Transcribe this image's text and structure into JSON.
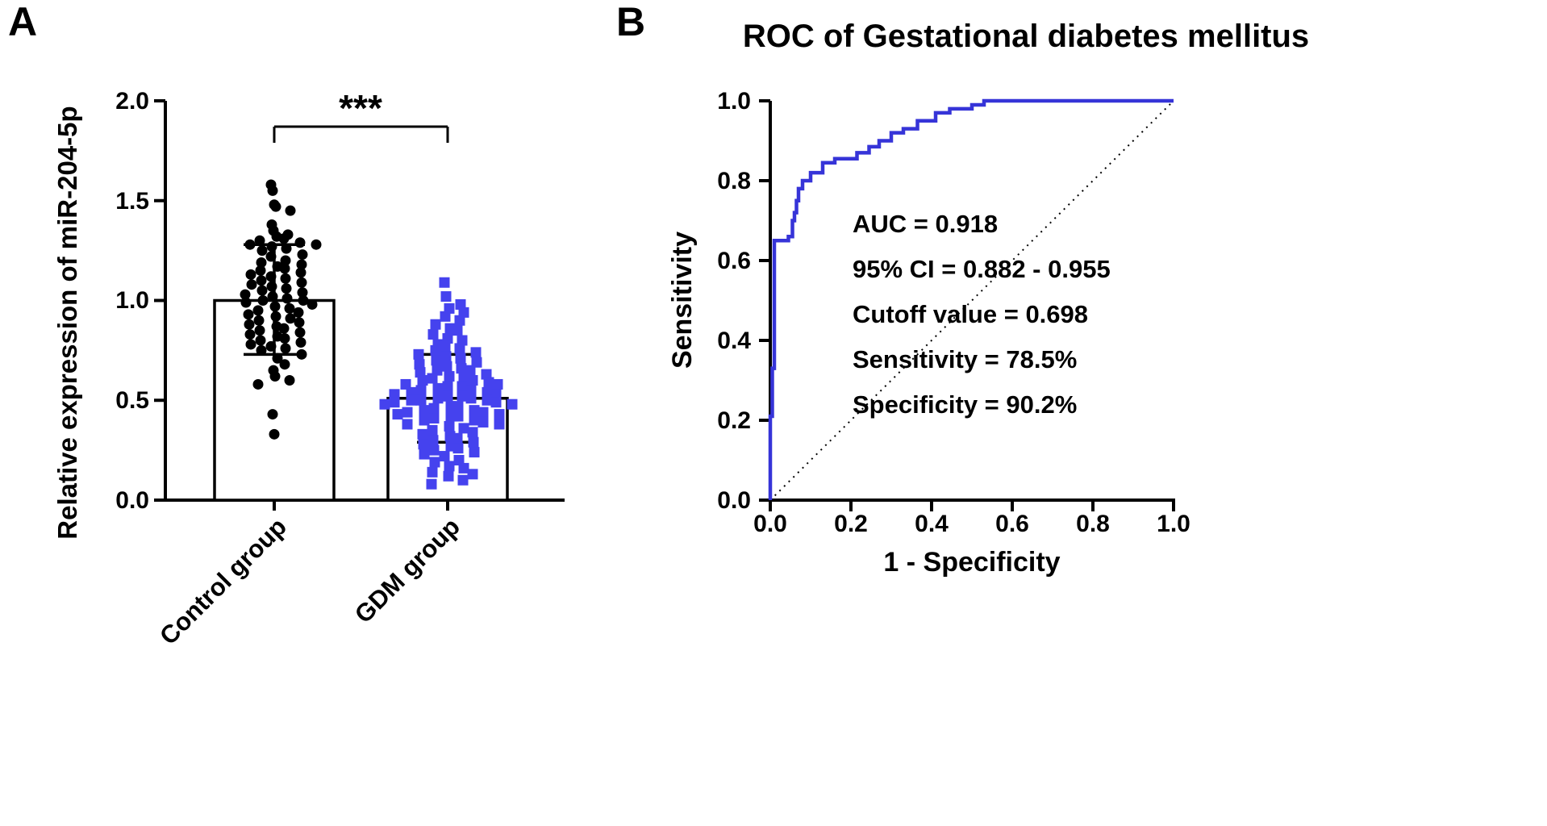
{
  "panels": {
    "a": {
      "label": "A"
    },
    "b": {
      "label": "B"
    }
  },
  "chart_data": [
    {
      "type": "scatter-bar",
      "panel": "A",
      "ylabel": "Relative expression of miR-204-5p",
      "ylim": [
        0,
        2.0
      ],
      "yticks": [
        "0.0",
        "0.5",
        "1.0",
        "1.5",
        "2.0"
      ],
      "significance": "***",
      "groups": [
        {
          "label": "Control group",
          "marker": "circle",
          "color": "#000000",
          "mean": 1.0,
          "error_low": 0.73,
          "error_high": 1.28,
          "values": [
            1.58,
            1.55,
            1.48,
            1.47,
            1.45,
            1.38,
            1.35,
            1.33,
            1.32,
            1.31,
            1.3,
            1.29,
            1.28,
            1.28,
            1.27,
            1.26,
            1.25,
            1.23,
            1.22,
            1.2,
            1.19,
            1.18,
            1.17,
            1.16,
            1.15,
            1.14,
            1.13,
            1.12,
            1.11,
            1.1,
            1.09,
            1.08,
            1.07,
            1.06,
            1.05,
            1.04,
            1.03,
            1.02,
            1.01,
            1.0,
            1.0,
            0.99,
            0.98,
            0.97,
            0.96,
            0.95,
            0.94,
            0.93,
            0.92,
            0.91,
            0.9,
            0.89,
            0.88,
            0.87,
            0.86,
            0.85,
            0.84,
            0.83,
            0.82,
            0.81,
            0.8,
            0.79,
            0.78,
            0.77,
            0.76,
            0.75,
            0.73,
            0.71,
            0.68,
            0.65,
            0.62,
            0.6,
            0.58,
            0.43,
            0.33
          ]
        },
        {
          "label": "GDM group",
          "marker": "square",
          "color": "#4542ee",
          "mean": 0.51,
          "error_low": 0.29,
          "error_high": 0.73,
          "values": [
            1.09,
            1.02,
            0.98,
            0.96,
            0.94,
            0.92,
            0.9,
            0.88,
            0.86,
            0.85,
            0.83,
            0.81,
            0.8,
            0.78,
            0.77,
            0.76,
            0.75,
            0.74,
            0.73,
            0.72,
            0.71,
            0.7,
            0.69,
            0.68,
            0.67,
            0.66,
            0.65,
            0.65,
            0.64,
            0.63,
            0.62,
            0.62,
            0.61,
            0.6,
            0.6,
            0.59,
            0.58,
            0.58,
            0.57,
            0.57,
            0.56,
            0.55,
            0.55,
            0.54,
            0.54,
            0.53,
            0.53,
            0.52,
            0.52,
            0.51,
            0.51,
            0.5,
            0.5,
            0.5,
            0.49,
            0.49,
            0.48,
            0.48,
            0.47,
            0.47,
            0.46,
            0.45,
            0.45,
            0.44,
            0.44,
            0.43,
            0.43,
            0.42,
            0.42,
            0.41,
            0.4,
            0.4,
            0.39,
            0.38,
            0.38,
            0.37,
            0.36,
            0.35,
            0.34,
            0.33,
            0.32,
            0.31,
            0.3,
            0.29,
            0.28,
            0.27,
            0.26,
            0.25,
            0.24,
            0.23,
            0.22,
            0.2,
            0.19,
            0.17,
            0.16,
            0.14,
            0.13,
            0.12,
            0.1,
            0.08
          ]
        }
      ]
    },
    {
      "type": "line",
      "panel": "B",
      "title": "ROC of Gestational diabetes mellitus",
      "xlabel": "1 - Specificity",
      "ylabel": "Sensitivity",
      "xlim": [
        0,
        1.0
      ],
      "ylim": [
        0,
        1.0
      ],
      "xticks": [
        "0.0",
        "0.2",
        "0.4",
        "0.6",
        "0.8",
        "1.0"
      ],
      "yticks": [
        "0.0",
        "0.2",
        "0.4",
        "0.6",
        "0.8",
        "1.0"
      ],
      "curve_color": "#3634d8",
      "reference_line": "diagonal-dotted",
      "annotations": [
        "AUC = 0.918",
        "95% CI = 0.882 - 0.955",
        "Cutoff value = 0.698",
        "Sensitivity = 78.5%",
        "Specificity = 90.2%"
      ],
      "roc_points": [
        [
          0,
          0
        ],
        [
          0,
          0.21
        ],
        [
          0.005,
          0.21
        ],
        [
          0.005,
          0.33
        ],
        [
          0.01,
          0.33
        ],
        [
          0.01,
          0.65
        ],
        [
          0.045,
          0.65
        ],
        [
          0.045,
          0.66
        ],
        [
          0.055,
          0.66
        ],
        [
          0.055,
          0.7
        ],
        [
          0.06,
          0.7
        ],
        [
          0.06,
          0.72
        ],
        [
          0.065,
          0.72
        ],
        [
          0.065,
          0.75
        ],
        [
          0.07,
          0.75
        ],
        [
          0.07,
          0.78
        ],
        [
          0.08,
          0.78
        ],
        [
          0.08,
          0.8
        ],
        [
          0.1,
          0.8
        ],
        [
          0.1,
          0.82
        ],
        [
          0.13,
          0.82
        ],
        [
          0.13,
          0.845
        ],
        [
          0.16,
          0.845
        ],
        [
          0.16,
          0.855
        ],
        [
          0.215,
          0.855
        ],
        [
          0.215,
          0.87
        ],
        [
          0.245,
          0.87
        ],
        [
          0.245,
          0.885
        ],
        [
          0.27,
          0.885
        ],
        [
          0.27,
          0.9
        ],
        [
          0.3,
          0.9
        ],
        [
          0.3,
          0.92
        ],
        [
          0.33,
          0.92
        ],
        [
          0.33,
          0.93
        ],
        [
          0.365,
          0.93
        ],
        [
          0.365,
          0.95
        ],
        [
          0.41,
          0.95
        ],
        [
          0.41,
          0.97
        ],
        [
          0.445,
          0.97
        ],
        [
          0.445,
          0.98
        ],
        [
          0.5,
          0.98
        ],
        [
          0.5,
          0.99
        ],
        [
          0.53,
          0.99
        ],
        [
          0.53,
          1.0
        ],
        [
          0.55,
          1.0
        ],
        [
          1.0,
          1.0
        ]
      ]
    }
  ]
}
